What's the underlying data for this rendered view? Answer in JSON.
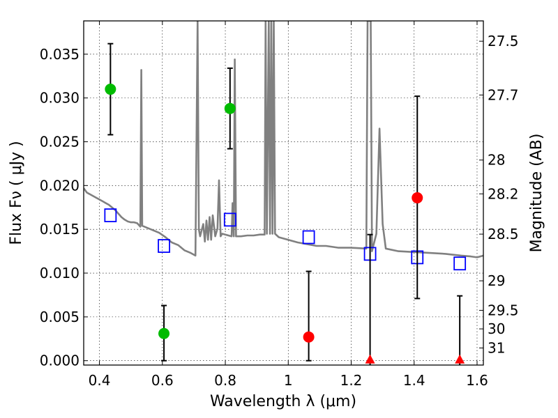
{
  "chart_data": {
    "type": "scatter",
    "xlabel": "Wavelength  λ (μm)",
    "ylabel": "Flux  Fν  ( μJy )",
    "ylabel_right": "Magnitude (AB)",
    "xlim": [
      0.35,
      1.62
    ],
    "ylim": [
      -0.0005,
      0.0388
    ],
    "grid": true,
    "xticks": [
      {
        "value": 0.4,
        "label": "0.4"
      },
      {
        "value": 0.6,
        "label": "0.6"
      },
      {
        "value": 0.8,
        "label": "0.8"
      },
      {
        "value": 1.0,
        "label": "1"
      },
      {
        "value": 1.2,
        "label": "1.2"
      },
      {
        "value": 1.4,
        "label": "1.4"
      },
      {
        "value": 1.6,
        "label": "1.6"
      }
    ],
    "yticks": [
      {
        "value": 0.0,
        "label": "0.000"
      },
      {
        "value": 0.005,
        "label": "0.005"
      },
      {
        "value": 0.01,
        "label": "0.010"
      },
      {
        "value": 0.015,
        "label": "0.015"
      },
      {
        "value": 0.02,
        "label": "0.020"
      },
      {
        "value": 0.025,
        "label": "0.025"
      },
      {
        "value": 0.03,
        "label": "0.030"
      },
      {
        "value": 0.035,
        "label": "0.035"
      }
    ],
    "right_ticks": [
      {
        "flux": 0.03648,
        "label": "27.5"
      },
      {
        "flux": 0.03034,
        "label": "27.7"
      },
      {
        "flux": 0.02291,
        "label": "28"
      },
      {
        "flux": 0.01905,
        "label": "28.2"
      },
      {
        "flux": 0.01445,
        "label": "28.5"
      },
      {
        "flux": 0.00912,
        "label": "29"
      },
      {
        "flux": 0.00575,
        "label": "29.5"
      },
      {
        "flux": 0.00363,
        "label": "30"
      },
      {
        "flux": 0.00145,
        "label": "31"
      }
    ],
    "series": [
      {
        "kind": "spectrum",
        "color": "#808080",
        "points": [
          [
            0.35,
            0.0197
          ],
          [
            0.36,
            0.0192
          ],
          [
            0.37,
            0.019
          ],
          [
            0.38,
            0.0188
          ],
          [
            0.39,
            0.0186
          ],
          [
            0.4,
            0.0184
          ],
          [
            0.41,
            0.0182
          ],
          [
            0.42,
            0.018
          ],
          [
            0.43,
            0.0178
          ],
          [
            0.44,
            0.0175
          ],
          [
            0.45,
            0.0172
          ],
          [
            0.46,
            0.0168
          ],
          [
            0.47,
            0.0164
          ],
          [
            0.48,
            0.0161
          ],
          [
            0.49,
            0.0159
          ],
          [
            0.5,
            0.0158
          ],
          [
            0.51,
            0.0158
          ],
          [
            0.52,
            0.0157
          ],
          [
            0.53,
            0.0153
          ],
          [
            0.533,
            0.0332
          ],
          [
            0.536,
            0.0154
          ],
          [
            0.55,
            0.0152
          ],
          [
            0.57,
            0.0149
          ],
          [
            0.59,
            0.0146
          ],
          [
            0.61,
            0.0141
          ],
          [
            0.63,
            0.0135
          ],
          [
            0.65,
            0.0132
          ],
          [
            0.67,
            0.0126
          ],
          [
            0.69,
            0.0123
          ],
          [
            0.705,
            0.012
          ],
          [
            0.712,
            0.0388
          ],
          [
            0.716,
            0.015
          ],
          [
            0.72,
            0.0142
          ],
          [
            0.73,
            0.0156
          ],
          [
            0.735,
            0.0136
          ],
          [
            0.74,
            0.016
          ],
          [
            0.745,
            0.0138
          ],
          [
            0.75,
            0.0164
          ],
          [
            0.755,
            0.0138
          ],
          [
            0.76,
            0.0166
          ],
          [
            0.768,
            0.0142
          ],
          [
            0.775,
            0.0151
          ],
          [
            0.78,
            0.0206
          ],
          [
            0.785,
            0.0142
          ],
          [
            0.79,
            0.0145
          ],
          [
            0.8,
            0.0144
          ],
          [
            0.82,
            0.0142
          ],
          [
            0.823,
            0.018
          ],
          [
            0.827,
            0.0142
          ],
          [
            0.83,
            0.0344
          ],
          [
            0.834,
            0.0142
          ],
          [
            0.85,
            0.0142
          ],
          [
            0.87,
            0.0143
          ],
          [
            0.89,
            0.0143
          ],
          [
            0.91,
            0.0144
          ],
          [
            0.925,
            0.0144
          ],
          [
            0.928,
            0.0388
          ],
          [
            0.932,
            0.0145
          ],
          [
            0.938,
            0.0388
          ],
          [
            0.942,
            0.0145
          ],
          [
            0.946,
            0.0388
          ],
          [
            0.95,
            0.0145
          ],
          [
            0.954,
            0.0388
          ],
          [
            0.958,
            0.0145
          ],
          [
            0.97,
            0.0141
          ],
          [
            1.0,
            0.0138
          ],
          [
            1.03,
            0.0135
          ],
          [
            1.06,
            0.0133
          ],
          [
            1.09,
            0.0131
          ],
          [
            1.12,
            0.0131
          ],
          [
            1.16,
            0.0129
          ],
          [
            1.2,
            0.0129
          ],
          [
            1.248,
            0.0128
          ],
          [
            1.252,
            0.0388
          ],
          [
            1.262,
            0.0388
          ],
          [
            1.266,
            0.0125
          ],
          [
            1.28,
            0.0145
          ],
          [
            1.29,
            0.0265
          ],
          [
            1.3,
            0.0156
          ],
          [
            1.31,
            0.0128
          ],
          [
            1.35,
            0.0125
          ],
          [
            1.4,
            0.0124
          ],
          [
            1.45,
            0.0123
          ],
          [
            1.5,
            0.0122
          ],
          [
            1.55,
            0.012
          ],
          [
            1.58,
            0.0119
          ],
          [
            1.6,
            0.0118
          ],
          [
            1.62,
            0.012
          ]
        ]
      },
      {
        "kind": "model",
        "marker": "open-square",
        "color": "#0000ff",
        "points": [
          [
            0.435,
            0.0166
          ],
          [
            0.605,
            0.0131
          ],
          [
            0.815,
            0.0161
          ],
          [
            1.065,
            0.0141
          ],
          [
            1.26,
            0.0122
          ],
          [
            1.41,
            0.0118
          ],
          [
            1.545,
            0.0111
          ]
        ]
      },
      {
        "kind": "detections",
        "marker": "circle",
        "color": "#00bb00",
        "points": [
          {
            "x": 0.435,
            "y": 0.031,
            "lo": 0.0258,
            "hi": 0.0362
          },
          {
            "x": 0.605,
            "y": 0.0031,
            "lo": 0.0,
            "hi": 0.0063
          },
          {
            "x": 0.815,
            "y": 0.0288,
            "lo": 0.0242,
            "hi": 0.0334
          }
        ]
      },
      {
        "kind": "low-significance",
        "marker": "circle",
        "color": "#ff0000",
        "points": [
          {
            "x": 1.065,
            "y": 0.0027,
            "lo": 0.0,
            "hi": 0.0102
          },
          {
            "x": 1.41,
            "y": 0.0186,
            "lo": 0.0071,
            "hi": 0.0302
          }
        ]
      },
      {
        "kind": "upper-limits",
        "marker": "triangle",
        "color": "#ff0000",
        "points": [
          {
            "x": 1.26,
            "y": 0.0,
            "hi": 0.0144
          },
          {
            "x": 1.545,
            "y": 0.0,
            "hi": 0.0074
          }
        ]
      }
    ]
  }
}
